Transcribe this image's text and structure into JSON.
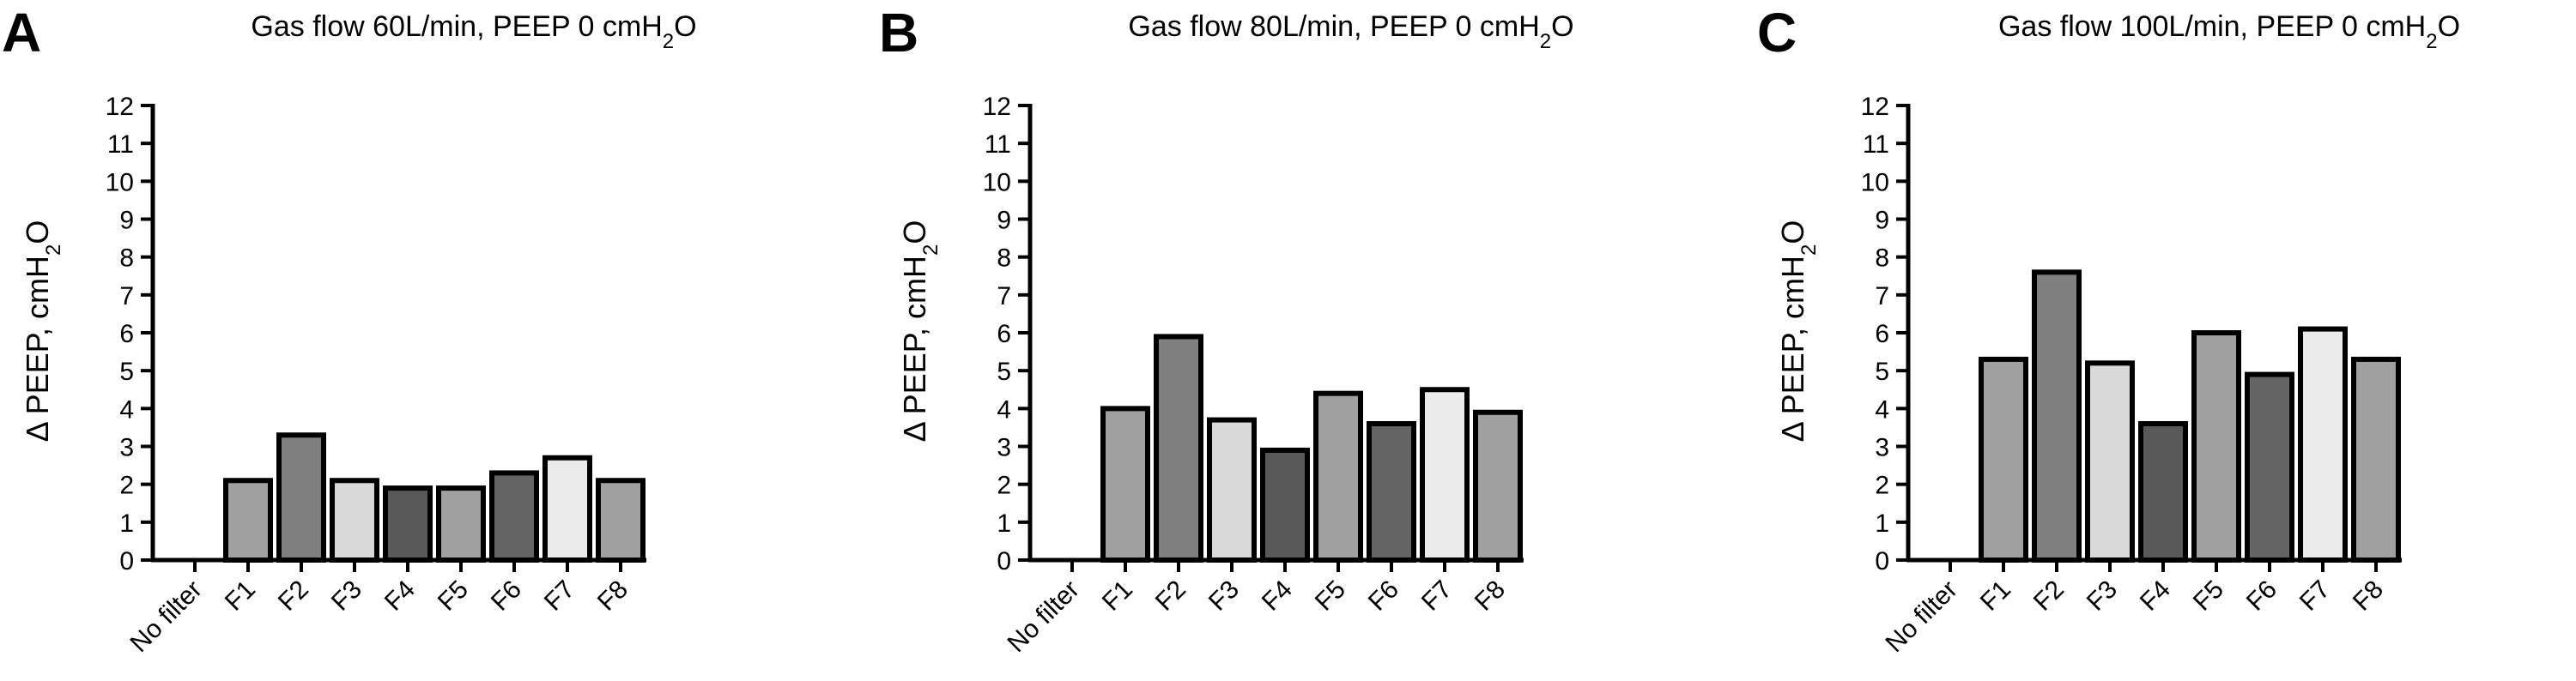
{
  "chart_data": [
    {
      "type": "bar",
      "panel": "A",
      "title": "Gas flow 60L/min, PEEP 0 cmH2O",
      "title_parts": {
        "pre": "Gas flow 60L/min, PEEP 0 cmH",
        "sub": "2",
        "post": "O"
      },
      "ylabel": "Δ PEEP, cmH2O",
      "ylabel_parts": {
        "pre": "Δ PEEP, cmH",
        "sub": "2",
        "post": "O"
      },
      "xlabel": "",
      "ylim": [
        0,
        12
      ],
      "yticks": [
        0,
        1,
        2,
        3,
        4,
        5,
        6,
        7,
        8,
        9,
        10,
        11,
        12
      ],
      "categories": [
        "No filter",
        "F1",
        "F2",
        "F3",
        "F4",
        "F5",
        "F6",
        "F7",
        "F8"
      ],
      "values": [
        0,
        2.1,
        3.3,
        2.1,
        1.9,
        1.9,
        2.3,
        2.7,
        2.1
      ],
      "bar_colors": [
        "#ffffff",
        "#a0a0a0",
        "#7f7f7f",
        "#d9d9d9",
        "#595959",
        "#a0a0a0",
        "#646464",
        "#ebebeb",
        "#a0a0a0"
      ],
      "grid": false,
      "legend": "none"
    },
    {
      "type": "bar",
      "panel": "B",
      "title": "Gas flow 80L/min, PEEP 0 cmH2O",
      "title_parts": {
        "pre": "Gas flow 80L/min, PEEP 0 cmH",
        "sub": "2",
        "post": "O"
      },
      "ylabel": "Δ PEEP, cmH2O",
      "ylabel_parts": {
        "pre": "Δ PEEP, cmH",
        "sub": "2",
        "post": "O"
      },
      "xlabel": "",
      "ylim": [
        0,
        12
      ],
      "yticks": [
        0,
        1,
        2,
        3,
        4,
        5,
        6,
        7,
        8,
        9,
        10,
        11,
        12
      ],
      "categories": [
        "No filter",
        "F1",
        "F2",
        "F3",
        "F4",
        "F5",
        "F6",
        "F7",
        "F8"
      ],
      "values": [
        0,
        4.0,
        5.9,
        3.7,
        2.9,
        4.4,
        3.6,
        4.5,
        3.9
      ],
      "bar_colors": [
        "#ffffff",
        "#a0a0a0",
        "#7f7f7f",
        "#d9d9d9",
        "#595959",
        "#a0a0a0",
        "#646464",
        "#ebebeb",
        "#a0a0a0"
      ],
      "grid": false,
      "legend": "none"
    },
    {
      "type": "bar",
      "panel": "C",
      "title": "Gas flow 100L/min, PEEP 0 cmH2O",
      "title_parts": {
        "pre": "Gas flow 100L/min, PEEP 0 cmH",
        "sub": "2",
        "post": "O"
      },
      "ylabel": "Δ PEEP, cmH2O",
      "ylabel_parts": {
        "pre": "Δ PEEP, cmH",
        "sub": "2",
        "post": "O"
      },
      "xlabel": "",
      "ylim": [
        0,
        12
      ],
      "yticks": [
        0,
        1,
        2,
        3,
        4,
        5,
        6,
        7,
        8,
        9,
        10,
        11,
        12
      ],
      "categories": [
        "No filter",
        "F1",
        "F2",
        "F3",
        "F4",
        "F5",
        "F6",
        "F7",
        "F8"
      ],
      "values": [
        0,
        5.3,
        7.6,
        5.2,
        3.6,
        6.0,
        4.9,
        6.1,
        5.3
      ],
      "bar_colors": [
        "#ffffff",
        "#a0a0a0",
        "#7f7f7f",
        "#d9d9d9",
        "#595959",
        "#a0a0a0",
        "#646464",
        "#ebebeb",
        "#a0a0a0"
      ],
      "grid": false,
      "legend": "none"
    }
  ]
}
